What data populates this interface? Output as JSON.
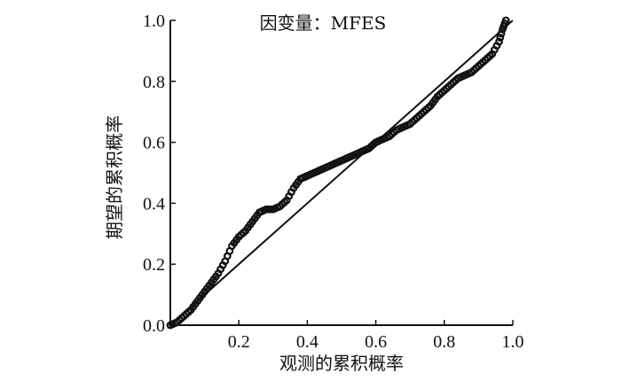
{
  "chart_data": {
    "type": "scatter",
    "title": "因变量：MFES",
    "xlabel": "观测的累积概率",
    "ylabel": "期望的累积概率",
    "xlim": [
      0,
      1
    ],
    "ylim": [
      0,
      1
    ],
    "x_ticks": [
      "0.2",
      "0.4",
      "0.6",
      "0.8",
      "1.0"
    ],
    "y_ticks": [
      "0.0",
      "0.2",
      "0.4",
      "0.6",
      "0.8",
      "1.0"
    ],
    "grid": false,
    "reference_line": {
      "x": [
        0,
        1
      ],
      "y": [
        0,
        1
      ]
    },
    "series": [
      {
        "marker": "open-circle",
        "x": [
          0.0,
          0.02,
          0.04,
          0.06,
          0.08,
          0.1,
          0.12,
          0.14,
          0.16,
          0.18,
          0.2,
          0.22,
          0.24,
          0.26,
          0.28,
          0.3,
          0.32,
          0.34,
          0.36,
          0.38,
          0.4,
          0.42,
          0.44,
          0.46,
          0.48,
          0.5,
          0.52,
          0.54,
          0.56,
          0.58,
          0.6,
          0.62,
          0.64,
          0.66,
          0.68,
          0.7,
          0.72,
          0.74,
          0.76,
          0.78,
          0.8,
          0.82,
          0.84,
          0.86,
          0.88,
          0.9,
          0.92,
          0.94,
          0.96,
          0.97,
          0.98
        ],
        "y": [
          0.0,
          0.01,
          0.03,
          0.05,
          0.08,
          0.11,
          0.14,
          0.17,
          0.21,
          0.26,
          0.29,
          0.31,
          0.34,
          0.37,
          0.38,
          0.38,
          0.39,
          0.41,
          0.45,
          0.48,
          0.49,
          0.5,
          0.51,
          0.52,
          0.53,
          0.54,
          0.55,
          0.56,
          0.57,
          0.58,
          0.6,
          0.61,
          0.62,
          0.64,
          0.65,
          0.66,
          0.68,
          0.7,
          0.72,
          0.75,
          0.77,
          0.79,
          0.81,
          0.82,
          0.83,
          0.85,
          0.87,
          0.89,
          0.93,
          0.97,
          1.0
        ]
      }
    ]
  },
  "colors": {
    "ink": "#111111",
    "background": "#ffffff"
  }
}
